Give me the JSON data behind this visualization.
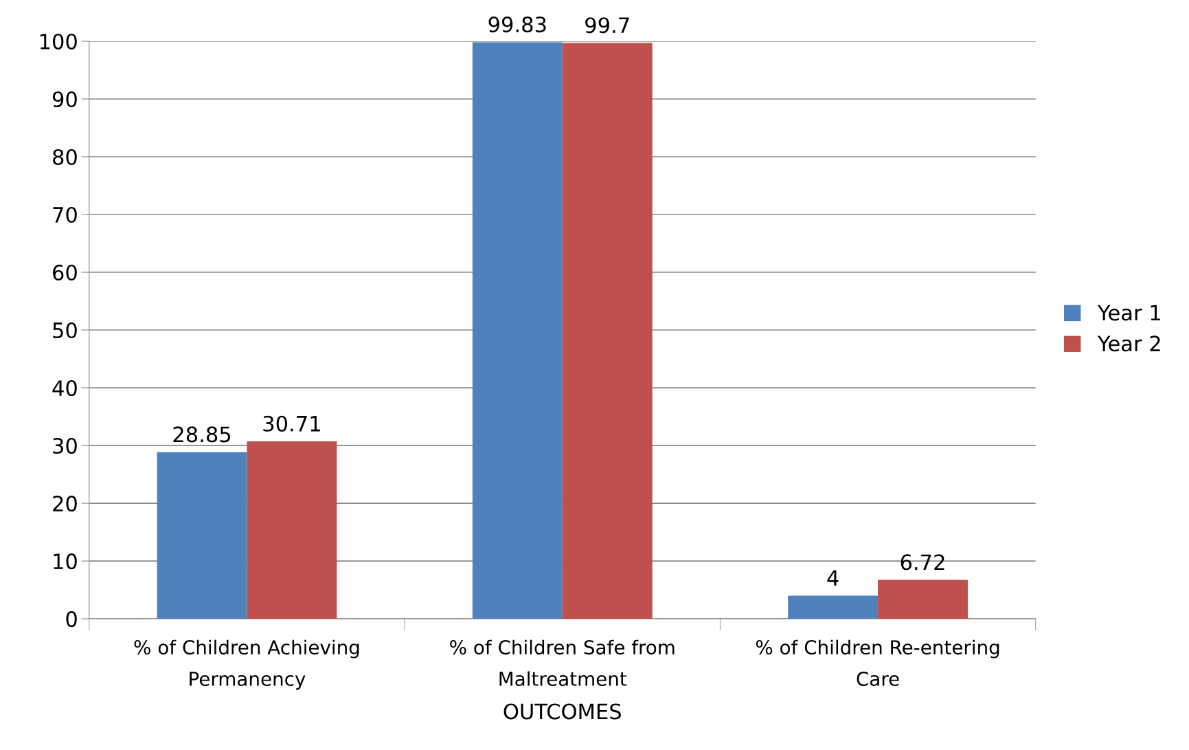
{
  "chart_data": {
    "type": "bar",
    "xlabel": "OUTCOMES",
    "categories": [
      "% of Children Achieving Permanency",
      "% of Children Safe from Maltreatment",
      "% of Children Re-entering Care"
    ],
    "series": [
      {
        "name": "Year 1",
        "color": "#4f81bd",
        "values": [
          28.85,
          99.83,
          4
        ]
      },
      {
        "name": "Year 2",
        "color": "#c0504d",
        "values": [
          30.71,
          99.7,
          6.72
        ]
      }
    ],
    "ylim": [
      0,
      100
    ],
    "yticks": [
      0,
      10,
      20,
      30,
      40,
      50,
      60,
      70,
      80,
      90,
      100
    ],
    "grid": "y",
    "legend": "right",
    "data_labels": true
  }
}
